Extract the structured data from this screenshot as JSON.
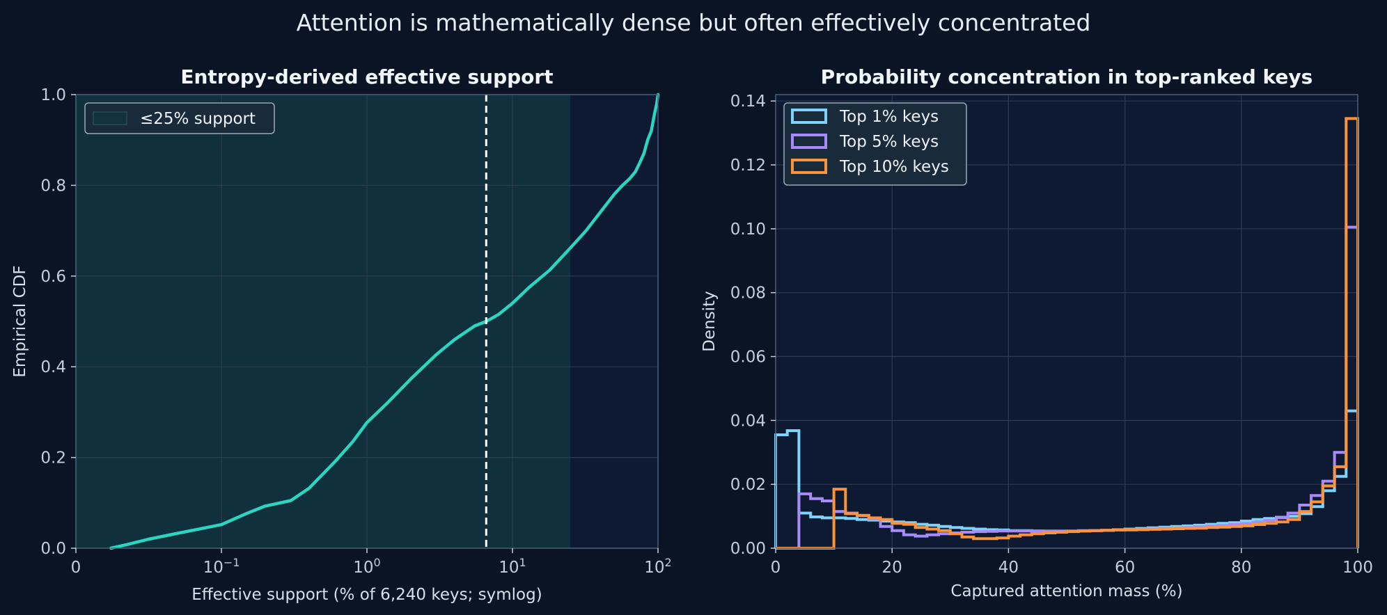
{
  "figure": {
    "title": "Attention is mathematically dense but often effectively concentrated",
    "background": "#0a1424",
    "panel_background": "#0e1a31",
    "spine_color": "#4a607a"
  },
  "chart_data": [
    {
      "type": "line",
      "title": "Entropy-derived effective support",
      "xlabel": "Effective support (% of 6,240 keys; symlog)",
      "ylabel": "Empirical CDF",
      "xscale": "symlog",
      "linthresh": 0.1,
      "xlim": [
        0,
        100
      ],
      "ylim": [
        0,
        1.0
      ],
      "xticks": [
        {
          "value": 0,
          "label": "0"
        },
        {
          "value": 0.1,
          "label": "10",
          "exp": "−1"
        },
        {
          "value": 1,
          "label": "10",
          "exp": "0"
        },
        {
          "value": 10,
          "label": "10",
          "exp": "1"
        },
        {
          "value": 100,
          "label": "10",
          "exp": "2"
        }
      ],
      "yticks": [
        "0.0",
        "0.2",
        "0.4",
        "0.6",
        "0.8",
        "1.0"
      ],
      "grid": true,
      "series": [
        {
          "color": "#2dd4bf",
          "x": [
            0.024,
            0.035,
            0.05,
            0.07,
            0.1,
            0.15,
            0.2,
            0.3,
            0.4,
            0.6,
            0.8,
            1.0,
            1.4,
            2.0,
            3.0,
            4.0,
            5.5,
            6.6,
            8.0,
            10.0,
            13.0,
            18.0,
            25.0,
            32.0,
            40.0,
            50.0,
            57.0,
            64.0,
            70.0,
            75.0,
            80.0,
            85.0,
            90.0,
            95.0,
            98.0,
            100.0
          ],
          "y": [
            0.0,
            0.008,
            0.02,
            0.033,
            0.052,
            0.077,
            0.093,
            0.105,
            0.132,
            0.19,
            0.235,
            0.277,
            0.322,
            0.373,
            0.427,
            0.46,
            0.49,
            0.5,
            0.515,
            0.54,
            0.575,
            0.613,
            0.662,
            0.7,
            0.74,
            0.78,
            0.8,
            0.815,
            0.83,
            0.85,
            0.87,
            0.9,
            0.92,
            0.96,
            0.98,
            1.0
          ]
        }
      ],
      "median_line": {
        "x": 6.6,
        "color": "#ffffff",
        "style": "dashed"
      },
      "shaded_region": {
        "x0": 0,
        "x1": 25,
        "label": "≤25% support",
        "color": "#12323f"
      },
      "legend": {
        "placement": "top-left"
      }
    },
    {
      "type": "histogram",
      "title": "Probability concentration in top-ranked keys",
      "xlabel": "Captured attention mass (%)",
      "ylabel": "Density",
      "xlim": [
        0,
        100
      ],
      "ylim": [
        0,
        0.142
      ],
      "xticks": [
        "0",
        "20",
        "40",
        "60",
        "80",
        "100"
      ],
      "yticks": [
        "0.00",
        "0.02",
        "0.04",
        "0.06",
        "0.08",
        "0.10",
        "0.12",
        "0.14"
      ],
      "grid": true,
      "bins": [
        0,
        2,
        4,
        6,
        8,
        10,
        12,
        14,
        16,
        18,
        20,
        22,
        24,
        26,
        28,
        30,
        32,
        34,
        36,
        38,
        40,
        42,
        44,
        46,
        48,
        50,
        52,
        54,
        56,
        58,
        60,
        62,
        64,
        66,
        68,
        70,
        72,
        74,
        76,
        78,
        80,
        82,
        84,
        86,
        88,
        90,
        92,
        94,
        96,
        98,
        100
      ],
      "series": [
        {
          "name": "Top 1% keys",
          "color": "#7dd3fc",
          "values": [
            0.0355,
            0.0368,
            0.011,
            0.0098,
            0.0095,
            0.0095,
            0.0093,
            0.009,
            0.0088,
            0.0085,
            0.0082,
            0.008,
            0.0075,
            0.0072,
            0.0068,
            0.0065,
            0.0062,
            0.006,
            0.0058,
            0.0057,
            0.0055,
            0.0055,
            0.0054,
            0.0053,
            0.0053,
            0.0053,
            0.0054,
            0.0055,
            0.0056,
            0.0058,
            0.006,
            0.0062,
            0.0064,
            0.0066,
            0.0068,
            0.007,
            0.0072,
            0.0075,
            0.0078,
            0.008,
            0.0085,
            0.009,
            0.0093,
            0.0097,
            0.01,
            0.0108,
            0.013,
            0.018,
            0.0225,
            0.043
          ]
        },
        {
          "name": "Top 5% keys",
          "color": "#a78bfa",
          "values": [
            0.0,
            0.0,
            0.017,
            0.0155,
            0.0148,
            0.0115,
            0.011,
            0.0102,
            0.0092,
            0.0068,
            0.0055,
            0.0042,
            0.0038,
            0.0042,
            0.0045,
            0.0048,
            0.005,
            0.0052,
            0.0053,
            0.0054,
            0.0054,
            0.0054,
            0.0054,
            0.0054,
            0.0054,
            0.0054,
            0.0055,
            0.0055,
            0.0056,
            0.0057,
            0.0058,
            0.0059,
            0.006,
            0.0062,
            0.0063,
            0.0065,
            0.0067,
            0.0069,
            0.0071,
            0.0074,
            0.0077,
            0.0081,
            0.0087,
            0.0095,
            0.011,
            0.0135,
            0.0165,
            0.021,
            0.03,
            0.1005
          ]
        },
        {
          "name": "Top 10% keys",
          "color": "#fb923c",
          "values": [
            0.0,
            0.0,
            0.0,
            0.0,
            0.0,
            0.0185,
            0.0108,
            0.0103,
            0.0095,
            0.009,
            0.0078,
            0.0075,
            0.0065,
            0.006,
            0.0055,
            0.0045,
            0.0035,
            0.003,
            0.003,
            0.0032,
            0.0038,
            0.0042,
            0.0045,
            0.0048,
            0.005,
            0.0052,
            0.0054,
            0.0055,
            0.0056,
            0.0057,
            0.0057,
            0.0058,
            0.0059,
            0.006,
            0.0061,
            0.0062,
            0.0063,
            0.0065,
            0.0066,
            0.0068,
            0.007,
            0.0074,
            0.0078,
            0.0082,
            0.009,
            0.0115,
            0.0145,
            0.0195,
            0.0255,
            0.1345
          ]
        }
      ],
      "legend": {
        "placement": "top-left"
      }
    }
  ]
}
